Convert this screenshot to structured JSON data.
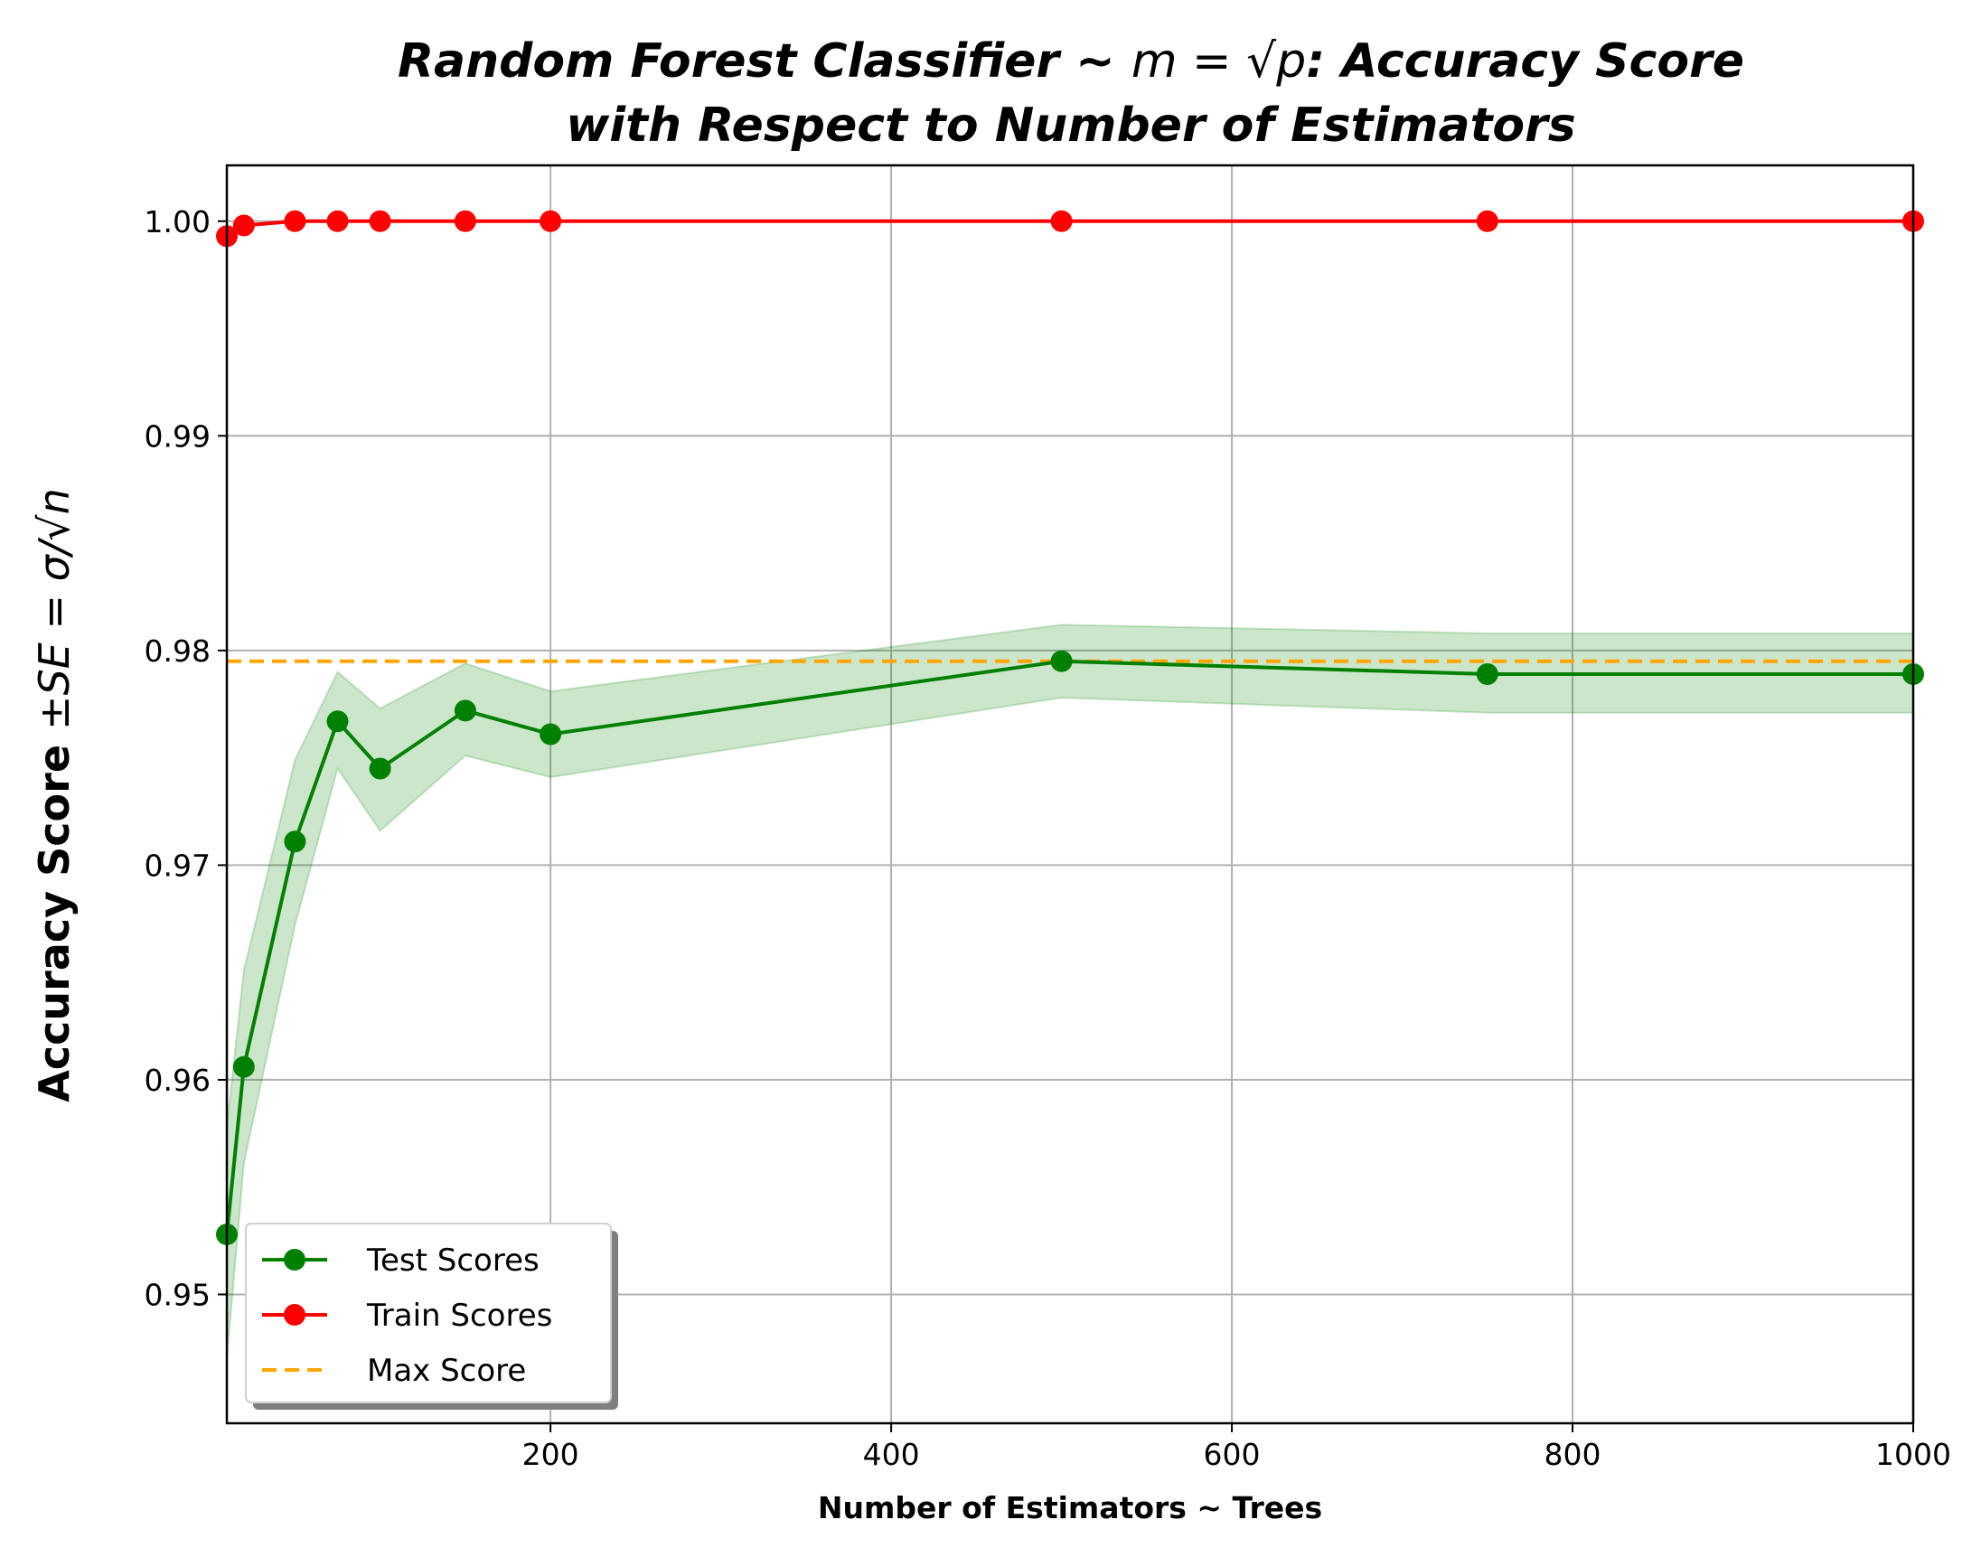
{
  "chart_data": {
    "type": "line",
    "title_line1_prefix": "Random Forest Classifier ~ ",
    "title_math": "m = √p",
    "title_line1_suffix": ": Accuracy Score",
    "title_line2": "with Respect to Number of Estimators",
    "xlabel": "Number of Estimators ~ Trees",
    "ylabel_bold": "Accuracy Score ",
    "ylabel_math": "±SE = σ/√n",
    "xlim": [
      10,
      1000
    ],
    "ylim": [
      0.944,
      1.0026
    ],
    "xticks": [
      200,
      400,
      600,
      800,
      1000
    ],
    "xtick_labels": [
      "200",
      "400",
      "600",
      "800",
      "1000"
    ],
    "yticks": [
      0.95,
      0.96,
      0.97,
      0.98,
      0.99,
      1.0
    ],
    "ytick_labels": [
      "0.95",
      "0.96",
      "0.97",
      "0.98",
      "0.99",
      "1.00"
    ],
    "grid": true,
    "legend_position": "lower-left",
    "x": [
      10,
      20,
      50,
      75,
      100,
      150,
      200,
      500,
      750,
      1000
    ],
    "series": [
      {
        "name": "Test Scores",
        "color": "#008000",
        "values": [
          0.9528,
          0.9606,
          0.9711,
          0.9767,
          0.9745,
          0.9772,
          0.9761,
          0.9795,
          0.9789,
          0.9789
        ],
        "band_upper": [
          0.9578,
          0.9651,
          0.9749,
          0.979,
          0.9773,
          0.9794,
          0.9781,
          0.9812,
          0.9808,
          0.9808
        ],
        "band_lower": [
          0.947,
          0.9561,
          0.9672,
          0.9745,
          0.9716,
          0.9751,
          0.9741,
          0.9778,
          0.9771,
          0.9771
        ],
        "band_color": "#008000"
      },
      {
        "name": "Train Scores",
        "color": "#ff0000",
        "values": [
          0.9993,
          0.9998,
          1.0,
          1.0,
          1.0,
          1.0,
          1.0,
          1.0,
          1.0,
          1.0
        ]
      },
      {
        "name": "Max Score",
        "color": "#ffa500",
        "style": "dashed",
        "value": 0.9795
      }
    ]
  }
}
